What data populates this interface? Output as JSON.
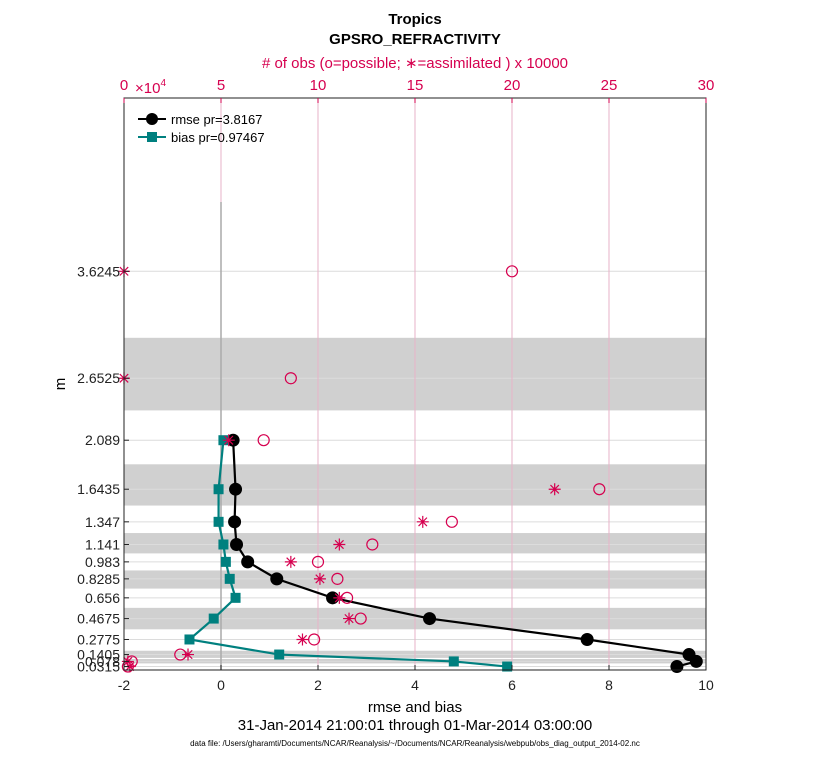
{
  "chart_data": {
    "type": "line",
    "title": "Tropics",
    "subtitle": "GPSRO_REFRACTIVITY",
    "xlabel": "rmse and bias",
    "ylabel": "m",
    "top_xlabel": "# of obs (o=possible; ∗=assimilated ) x 10000",
    "top_exponent_base": "×10",
    "top_exponent": "4",
    "date_range": "31-Jan-2014 21:00:01 through 01-Mar-2014 03:00:00",
    "footnote": "data file: /Users/gharamti/Documents/NCAR/Reanalysis/~/Documents/NCAR/Reanalysis/webpub/obs_diag_output_2014-02.nc",
    "xlim": [
      -2,
      10
    ],
    "ylim": [
      0,
      5.2
    ],
    "top_xlim": [
      0,
      30
    ],
    "x_ticks": [
      "-2",
      "0",
      "2",
      "4",
      "6",
      "8",
      "10"
    ],
    "top_ticks": [
      "0",
      "5",
      "10",
      "15",
      "20",
      "25",
      "30"
    ],
    "y_levels": [
      0.0315,
      0.078,
      0.1405,
      0.2775,
      0.4675,
      0.656,
      0.8285,
      0.983,
      1.141,
      1.347,
      1.6435,
      2.089,
      2.6525,
      3.6245
    ],
    "y_tick_labels": [
      "0.0315",
      "0.078",
      "0.1405",
      "0.2775",
      "0.4675",
      "0.656",
      "0.8285",
      "0.983",
      "1.141",
      "1.347",
      "1.6435",
      "2.089",
      "2.6525",
      "3.6245"
    ],
    "shaded_bands": [
      [
        0.06,
        0.1
      ],
      [
        0.11,
        0.175
      ],
      [
        0.37,
        0.565
      ],
      [
        0.74,
        0.905
      ],
      [
        1.06,
        1.245
      ],
      [
        1.495,
        1.87
      ],
      [
        2.36,
        3.02
      ]
    ],
    "series": [
      {
        "name": "rmse pr=3.8167",
        "color": "#000000",
        "x": [
          0.25,
          0.3,
          0.28,
          0.32,
          0.55,
          1.15,
          2.3,
          4.3,
          7.55,
          9.65,
          9.8,
          9.4
        ],
        "y": [
          2.089,
          1.6435,
          1.347,
          1.141,
          0.983,
          0.8285,
          0.656,
          0.4675,
          0.2775,
          0.1405,
          0.078,
          0.0315
        ]
      },
      {
        "name": "bias pr=0.97467",
        "color": "#00807f",
        "x": [
          0.05,
          -0.05,
          -0.05,
          0.05,
          0.1,
          0.18,
          0.3,
          -0.15,
          -0.65,
          1.2,
          4.8,
          5.9
        ],
        "y": [
          2.089,
          1.6435,
          1.347,
          1.141,
          0.983,
          0.8285,
          0.656,
          0.4675,
          0.2775,
          0.1405,
          0.078,
          0.0315
        ]
      }
    ],
    "obs_possible": {
      "name": "possible",
      "color": "#d6004f",
      "x": [
        20,
        8.6,
        7.2,
        24.5,
        16.9,
        12.8,
        10,
        11,
        11.5,
        12.2,
        9.8,
        2.9,
        0.4,
        0.2
      ],
      "y": [
        3.6245,
        2.6525,
        2.089,
        1.6435,
        1.347,
        1.141,
        0.983,
        0.8285,
        0.656,
        0.4675,
        0.2775,
        0.1405,
        0.078,
        0.0315
      ]
    },
    "obs_assimilated": {
      "name": "assimilated",
      "color": "#d6004f",
      "x": [
        0,
        0,
        5.4,
        22.2,
        15.4,
        11.1,
        8.6,
        10.1,
        11.1,
        11.6,
        9.2,
        3.3,
        0.2,
        0.3
      ],
      "y": [
        3.6245,
        2.6525,
        2.089,
        1.6435,
        1.347,
        1.141,
        0.983,
        0.8285,
        0.656,
        0.4675,
        0.2775,
        0.1405,
        0.078,
        0.0315
      ]
    },
    "grid": true,
    "legend_position": "top-left"
  }
}
